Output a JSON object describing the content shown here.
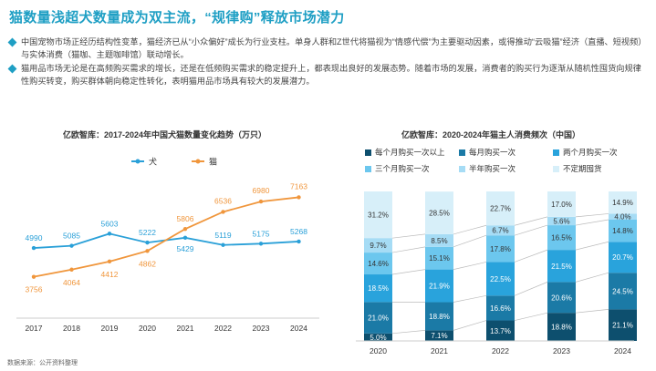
{
  "page": {
    "title": "猫数量浅超犬数量成为双主流，“规律购”释放市场潜力",
    "bullets": [
      "中国宠物市场正经历结构性变革，猫经济已从“小众偏好”成长为行业支柱。单身人群和Z世代将猫视为“情感代偿”为主要驱动因素，或得推动“云吸猫”经济（直播、短视频）与实体消费（猫咖、主题咖啡馆）联动增长。",
      "猫用品市场无论是在高频购买需求的增长，还是在低频购买需求的稳定提升上，都表现出良好的发展态势。随着市场的发展，消费者的购买行为逐渐从随机性囤货向规律性购买转变，购买群体朝向稳定性转化，表明猫用品市场具有较大的发展潜力。"
    ],
    "source": "数据来源：公开资料整理",
    "accent_color": "#1f9fc4",
    "bullet_icon": "diamond-icon"
  },
  "chart_data": [
    {
      "type": "line",
      "title": "亿欧智库：2017-2024年中国犬猫数量变化趋势（万只）",
      "categories": [
        "2017",
        "2018",
        "2019",
        "2020",
        "2021",
        "2022",
        "2023",
        "2024"
      ],
      "series": [
        {
          "name": "犬",
          "color": "#2aa0d8",
          "values": [
            4990,
            5085,
            5603,
            5222,
            5429,
            5119,
            5175,
            5268
          ]
        },
        {
          "name": "猫",
          "color": "#f0963c",
          "values": [
            3756,
            4064,
            4412,
            4862,
            5806,
            6536,
            6980,
            7163
          ]
        }
      ],
      "ylim": [
        3000,
        8000
      ],
      "legend": "top-center",
      "grid": false
    },
    {
      "type": "bar",
      "stacked": true,
      "percent": true,
      "title": "亿欧智库：2020-2024年猫主人消费频次（中国）",
      "categories": [
        "2020",
        "2021",
        "2022",
        "2023",
        "2024"
      ],
      "series": [
        {
          "name": "每个月购买一次以上",
          "color": "#0d4f6e",
          "values": [
            5.0,
            7.1,
            13.7,
            18.8,
            21.1
          ]
        },
        {
          "name": "每月购买一次",
          "color": "#1b7aa6",
          "values": [
            21.0,
            18.8,
            16.6,
            20.6,
            24.5
          ]
        },
        {
          "name": "两个月购买一次",
          "color": "#29a3dc",
          "values": [
            18.5,
            21.9,
            22.5,
            21.5,
            20.7
          ]
        },
        {
          "name": "三个月购买一次",
          "color": "#6cc7ee",
          "values": [
            14.6,
            15.1,
            17.8,
            16.5,
            14.8
          ]
        },
        {
          "name": "半年购买一次",
          "color": "#a6dcf5",
          "values": [
            9.7,
            8.5,
            6.7,
            5.6,
            4.0
          ]
        },
        {
          "name": "不定期囤货",
          "color": "#d7eff9",
          "values": [
            31.2,
            28.5,
            22.7,
            17.0,
            14.9
          ]
        }
      ],
      "ylim": [
        0,
        100
      ],
      "legend": "top",
      "grid": false
    }
  ]
}
